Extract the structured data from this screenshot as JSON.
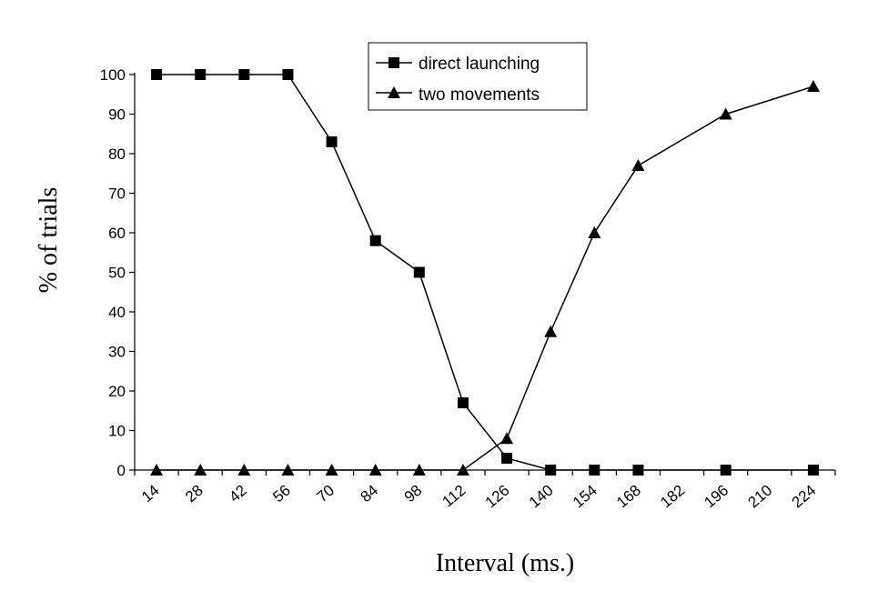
{
  "chart_data": {
    "type": "line",
    "xlabel": "Interval (ms.)",
    "ylabel": "% of trials",
    "categories": [
      "14",
      "28",
      "42",
      "56",
      "70",
      "84",
      "98",
      "112",
      "126",
      "140",
      "154",
      "168",
      "182",
      "196",
      "210",
      "224"
    ],
    "ylim": [
      0,
      100
    ],
    "yticks": [
      0,
      10,
      20,
      30,
      40,
      50,
      60,
      70,
      80,
      90,
      100
    ],
    "grid": false,
    "legend_position": "top",
    "series": [
      {
        "name": "direct launching",
        "marker": "square",
        "color": "#000000",
        "points": [
          {
            "x": 14,
            "y": 100
          },
          {
            "x": 28,
            "y": 100
          },
          {
            "x": 42,
            "y": 100
          },
          {
            "x": 56,
            "y": 100
          },
          {
            "x": 70,
            "y": 83
          },
          {
            "x": 84,
            "y": 58
          },
          {
            "x": 98,
            "y": 50
          },
          {
            "x": 112,
            "y": 17
          },
          {
            "x": 126,
            "y": 3
          },
          {
            "x": 140,
            "y": 0
          },
          {
            "x": 154,
            "y": 0
          },
          {
            "x": 168,
            "y": 0
          },
          {
            "x": 196,
            "y": 0
          },
          {
            "x": 224,
            "y": 0
          }
        ]
      },
      {
        "name": "two movements",
        "marker": "triangle",
        "color": "#000000",
        "points": [
          {
            "x": 14,
            "y": 0
          },
          {
            "x": 28,
            "y": 0
          },
          {
            "x": 42,
            "y": 0
          },
          {
            "x": 56,
            "y": 0
          },
          {
            "x": 70,
            "y": 0
          },
          {
            "x": 84,
            "y": 0
          },
          {
            "x": 98,
            "y": 0
          },
          {
            "x": 112,
            "y": 0
          },
          {
            "x": 126,
            "y": 8
          },
          {
            "x": 140,
            "y": 35
          },
          {
            "x": 154,
            "y": 60
          },
          {
            "x": 168,
            "y": 77
          },
          {
            "x": 196,
            "y": 90
          },
          {
            "x": 224,
            "y": 97
          }
        ]
      }
    ]
  }
}
